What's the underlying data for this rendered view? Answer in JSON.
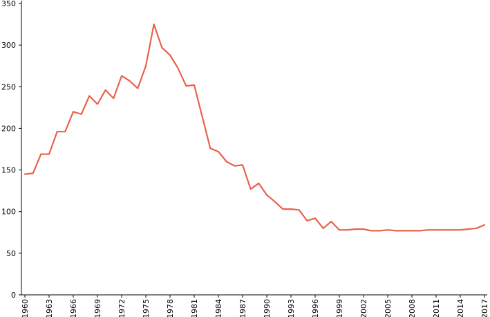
{
  "chart_data": {
    "type": "line",
    "title": "",
    "xlabel": "",
    "ylabel": "",
    "ylim": [
      0,
      350
    ],
    "xlim": [
      1960,
      2017
    ],
    "grid": false,
    "legend": "none",
    "y_ticks": [
      0,
      50,
      100,
      150,
      200,
      250,
      300,
      350
    ],
    "x_ticks": [
      1960,
      1963,
      1966,
      1969,
      1972,
      1975,
      1978,
      1981,
      1984,
      1987,
      1990,
      1993,
      1996,
      1999,
      2002,
      2005,
      2008,
      2011,
      2014,
      2017
    ],
    "series": [
      {
        "color": "#e8624a",
        "x": [
          1960,
          1961,
          1962,
          1963,
          1964,
          1965,
          1966,
          1967,
          1968,
          1969,
          1970,
          1971,
          1972,
          1973,
          1974,
          1975,
          1976,
          1977,
          1978,
          1979,
          1980,
          1981,
          1982,
          1983,
          1984,
          1985,
          1986,
          1987,
          1988,
          1989,
          1990,
          1991,
          1992,
          1993,
          1994,
          1995,
          1996,
          1997,
          1998,
          1999,
          2000,
          2001,
          2002,
          2003,
          2004,
          2005,
          2006,
          2007,
          2008,
          2009,
          2010,
          2011,
          2012,
          2013,
          2014,
          2015,
          2016,
          2017
        ],
        "values": [
          145,
          146,
          169,
          169,
          196,
          196,
          220,
          217,
          239,
          229,
          246,
          236,
          263,
          257,
          248,
          275,
          325,
          297,
          288,
          272,
          251,
          252,
          214,
          176,
          172,
          160,
          155,
          156,
          127,
          134,
          120,
          112,
          103,
          103,
          102,
          89,
          92,
          80,
          88,
          78,
          78,
          79,
          79,
          77,
          77,
          78,
          77,
          77,
          77,
          77,
          78,
          78,
          78,
          78,
          78,
          79,
          80,
          84
        ]
      }
    ]
  }
}
